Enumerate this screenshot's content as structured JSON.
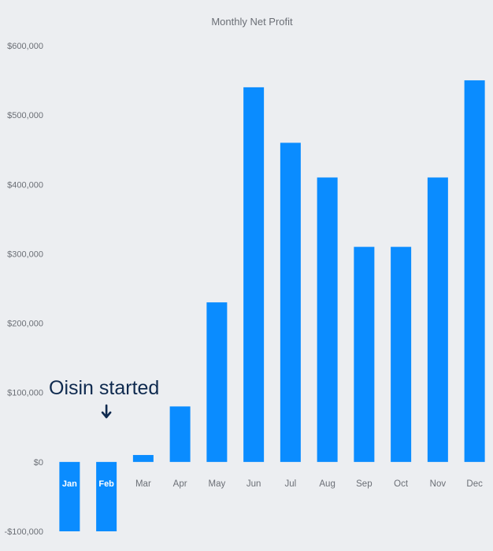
{
  "chart_data": {
    "type": "bar",
    "title": "Monthly Net Profit",
    "xlabel": "",
    "ylabel": "",
    "categories": [
      "Jan",
      "Feb",
      "Mar",
      "Apr",
      "May",
      "Jun",
      "Jul",
      "Aug",
      "Sep",
      "Oct",
      "Nov",
      "Dec"
    ],
    "values": [
      -100000,
      -100000,
      10000,
      80000,
      230000,
      540000,
      460000,
      410000,
      310000,
      310000,
      410000,
      550000
    ],
    "ylim": [
      -100000,
      600000
    ],
    "yticks": [
      -100000,
      0,
      100000,
      200000,
      300000,
      400000,
      500000,
      600000
    ],
    "ytick_labels": [
      "-$100,000",
      "$0",
      "$100,000",
      "$200,000",
      "$300,000",
      "$400,000",
      "$500,000",
      "$600,000"
    ],
    "grid": false,
    "bar_color": "#0a8cff",
    "annotation": {
      "text": "Oisin started",
      "category": "Feb",
      "arrow": "down-arrow-icon"
    }
  }
}
